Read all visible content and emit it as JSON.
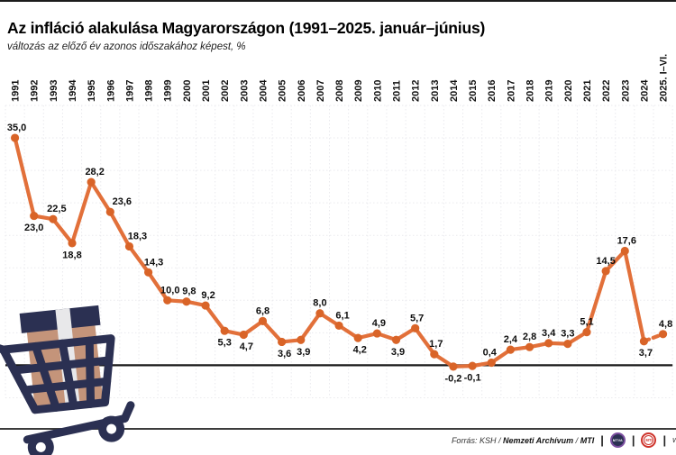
{
  "header": {
    "title": "Az infláció alakulása Magyarországon (1991–2025. január–június)",
    "subtitle": "változás az előző év azonos időszakához képest, %"
  },
  "chart_data": {
    "type": "line",
    "title": "Az infláció alakulása Magyarországon (1991–2025. január–június)",
    "subtitle": "változás az előző év azonos időszakához képest, %",
    "ylabel": "%",
    "ylim": [
      -5,
      40
    ],
    "grid": true,
    "gridline_step": 5,
    "legend": "none",
    "line_color": "#E2703A",
    "marker_color": "#D96428",
    "zero_line_color": "#1a1a1a",
    "grid_color": "#eaeaee",
    "dashed_last_segment": true,
    "categories": [
      "1991",
      "1992",
      "1993",
      "1994",
      "1995",
      "1996",
      "1997",
      "1998",
      "1999",
      "2000",
      "2001",
      "2002",
      "2003",
      "2004",
      "2005",
      "2006",
      "2007",
      "2008",
      "2009",
      "2010",
      "2011",
      "2012",
      "2013",
      "2014",
      "2015",
      "2016",
      "2017",
      "2018",
      "2019",
      "2020",
      "2021",
      "2022",
      "2023",
      "2024",
      "2025. I–VI."
    ],
    "values": [
      35.0,
      23.0,
      22.5,
      18.8,
      28.2,
      23.6,
      18.3,
      14.3,
      10.0,
      9.8,
      9.2,
      5.3,
      4.7,
      6.8,
      3.6,
      3.9,
      8.0,
      6.1,
      4.2,
      4.9,
      3.9,
      5.7,
      1.7,
      -0.2,
      -0.1,
      0.4,
      2.4,
      2.8,
      3.4,
      3.3,
      5.1,
      14.5,
      17.6,
      3.7,
      4.8
    ],
    "labels": [
      "35,0",
      "23,0",
      "22,5",
      "18,8",
      "28,2",
      "23,6",
      "18,3",
      "14,3",
      "10,0",
      "9,8",
      "9,2",
      "5,3",
      "4,7",
      "6,8",
      "3,6",
      "3,9",
      "8,0",
      "6,1",
      "4,2",
      "4,9",
      "3,9",
      "5,7",
      "1,7",
      "-0,2",
      "-0,1",
      "0,4",
      "2,4",
      "2,8",
      "3,4",
      "3,3",
      "5,1",
      "14,5",
      "17,6",
      "3,7",
      "4,8"
    ],
    "label_side": [
      "above",
      "below",
      "above",
      "below",
      "above",
      "above",
      "above",
      "above",
      "above",
      "above",
      "above",
      "below",
      "below",
      "above",
      "below",
      "below",
      "above",
      "above",
      "below",
      "above",
      "below",
      "above",
      "above",
      "below",
      "below",
      "above",
      "above",
      "above",
      "above",
      "above",
      "above",
      "above",
      "above",
      "below",
      "above"
    ],
    "label_dx": [
      2,
      0,
      4,
      0,
      4,
      13,
      9,
      6,
      3,
      3,
      3,
      0,
      3,
      0,
      3,
      3,
      0,
      4,
      2,
      2,
      2,
      2,
      2,
      0,
      0,
      -2,
      0,
      0,
      0,
      0,
      0,
      0,
      2,
      2,
      3
    ]
  },
  "illustration": {
    "name": "shopping-cart-with-package",
    "cart_color": "#2B3052",
    "package_color": "#C4947A",
    "strap_color": "#E8E8EA"
  },
  "footer": {
    "source_prefix": "Forrás: KSH /",
    "archive": "Nemzeti Archívum",
    "separator": "/",
    "agency": "MTI",
    "divider": "|",
    "mtva_logo_text": "MTVA",
    "mti_logo_text": "MTI",
    "trailing_text": "w"
  }
}
